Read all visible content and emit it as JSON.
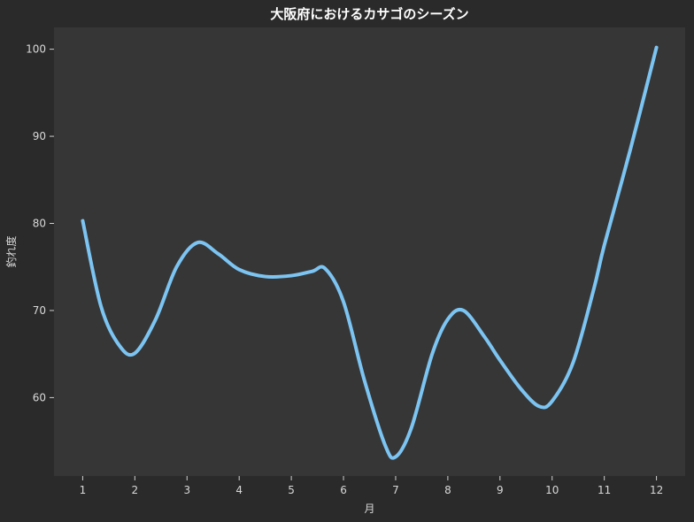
{
  "chart_data": {
    "type": "line",
    "title": "大阪府におけるカサゴのシーズン",
    "xlabel": "月",
    "ylabel": "釣れ度",
    "xlim": [
      0.45,
      12.55
    ],
    "ylim": [
      51,
      102.5
    ],
    "x_ticks": [
      1,
      2,
      3,
      4,
      5,
      6,
      7,
      8,
      9,
      10,
      11,
      12
    ],
    "y_ticks": [
      60,
      70,
      80,
      90,
      100
    ],
    "grid": false,
    "legend": "none",
    "series": [
      {
        "color": "#7cc4f2",
        "line_style": "smooth",
        "points": [
          {
            "x": 1.0,
            "y": 80.3
          },
          {
            "x": 1.35,
            "y": 70.5
          },
          {
            "x": 1.7,
            "y": 66.0
          },
          {
            "x": 2.0,
            "y": 65.1
          },
          {
            "x": 2.4,
            "y": 69.0
          },
          {
            "x": 2.8,
            "y": 75.0
          },
          {
            "x": 3.2,
            "y": 77.8
          },
          {
            "x": 3.6,
            "y": 76.5
          },
          {
            "x": 4.0,
            "y": 74.7
          },
          {
            "x": 4.5,
            "y": 73.9
          },
          {
            "x": 5.0,
            "y": 74.0
          },
          {
            "x": 5.4,
            "y": 74.5
          },
          {
            "x": 5.65,
            "y": 74.8
          },
          {
            "x": 6.0,
            "y": 71.0
          },
          {
            "x": 6.4,
            "y": 62.0
          },
          {
            "x": 6.8,
            "y": 54.5
          },
          {
            "x": 7.0,
            "y": 53.2
          },
          {
            "x": 7.3,
            "y": 56.5
          },
          {
            "x": 7.7,
            "y": 65.0
          },
          {
            "x": 8.0,
            "y": 69.0
          },
          {
            "x": 8.3,
            "y": 70.0
          },
          {
            "x": 8.7,
            "y": 67.0
          },
          {
            "x": 9.0,
            "y": 64.3
          },
          {
            "x": 9.4,
            "y": 61.0
          },
          {
            "x": 9.75,
            "y": 59.0
          },
          {
            "x": 10.0,
            "y": 59.6
          },
          {
            "x": 10.4,
            "y": 64.0
          },
          {
            "x": 10.8,
            "y": 72.5
          },
          {
            "x": 11.0,
            "y": 77.5
          },
          {
            "x": 11.5,
            "y": 88.5
          },
          {
            "x": 12.0,
            "y": 100.2
          }
        ]
      }
    ]
  }
}
